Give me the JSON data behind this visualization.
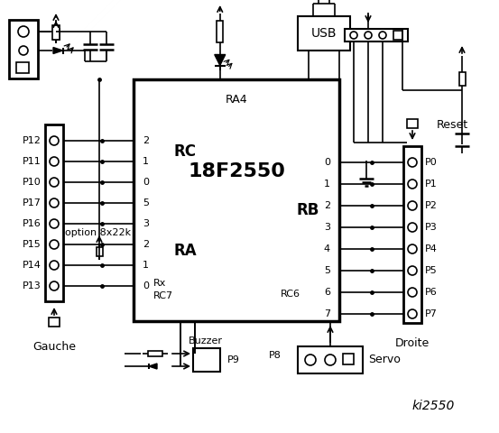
{
  "bg_color": "#ffffff",
  "chip_label": "18F2550",
  "chip_sublabel": "RA4",
  "rc_label": "RC",
  "ra_label": "RA",
  "rb_label": "RB",
  "rc6_label": "RC6",
  "left_pins_labels": [
    "P12",
    "P11",
    "P10",
    "P17",
    "P16",
    "P15",
    "P14",
    "P13"
  ],
  "left_pins_rc_labels": [
    "2",
    "1",
    "0",
    "5",
    "3",
    "2",
    "1",
    "0"
  ],
  "right_pins_labels": [
    "P0",
    "P1",
    "P2",
    "P3",
    "P4",
    "P5",
    "P6",
    "P7"
  ],
  "right_pins_rb_labels": [
    "0",
    "1",
    "2",
    "3",
    "4",
    "5",
    "6",
    "7"
  ],
  "option_text": "option 8x22k",
  "gauche_text": "Gauche",
  "droite_text": "Droite",
  "buzzer_text": "Buzzer",
  "usb_text": "USB",
  "reset_text": "Reset",
  "servo_text": "Servo",
  "p8_text": "P8",
  "p9_text": "P9",
  "title_text": "ki2550"
}
